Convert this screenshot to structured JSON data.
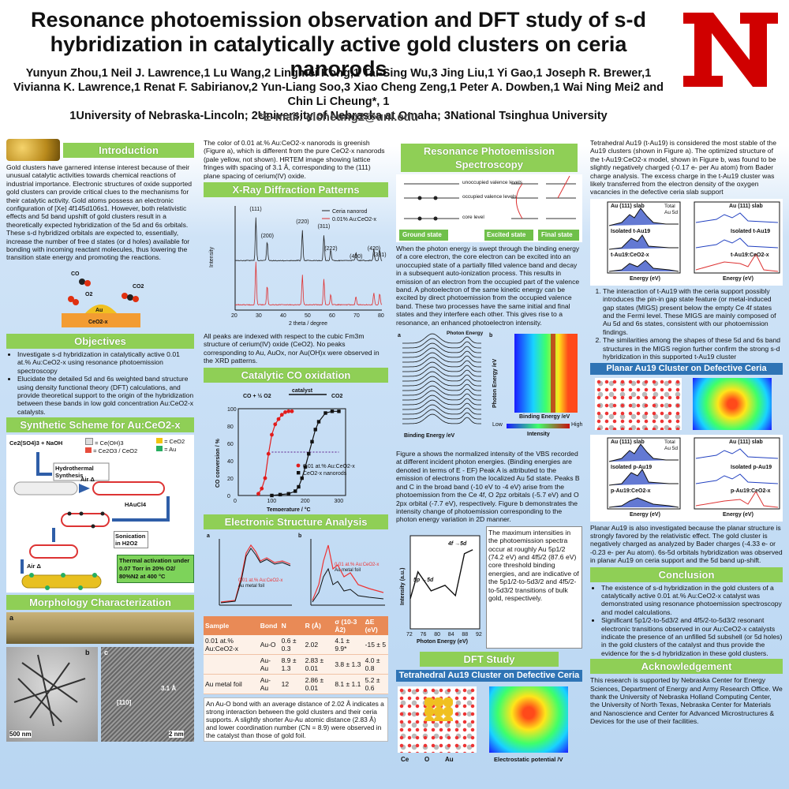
{
  "header": {
    "title": "Resonance photoemission observation and DFT study of s-d hybridization in catalytically active gold clusters on ceria nanorods",
    "authors_line1": "Yunyun Zhou,1 Neil J. Lawrence,1 Lu Wang,2 Lingmei Kong,1 Tai-Sing Wu,3 Jing Liu,1 Yi Gao,1 Joseph R. Brewer,1 Vivianna K. Lawrence,1 Renat F. Sabirianov,2 Yun-Liang Soo,3 Xiao Cheng Zeng,1 Peter A. Dowben,1 Wai Ning Mei2 and Chin Li Cheung*, 1",
    "affiliations": "1University of Nebraska-Lincoln; 2University of Nebraska at Omaha; 3National Tsinghua University",
    "email": "*E-mail: clcheung2@unl.edu",
    "logo_letter": "N"
  },
  "intro": {
    "heading": "Introduction",
    "text": "Gold clusters have garnered intense interest because of their unusual catalytic activities towards chemical reactions of industrial importance. Electronic structures of oxide supported gold clusters can provide critical clues to the mechanisms for their catalytic activity. Gold atoms possess an electronic configuration of [Xe] 4f145d106s1. However, both relativistic effects and 5d band upshift of gold clusters result in a theoretically expected hybridization of the 5d and 6s orbitals. These s-d hybridized orbitals are expected to, essentially, increase the number of free d states (or d holes) available for bonding with incoming reactant molecules, thus lowering the transition state energy and promoting the reactions.",
    "fig_labels": {
      "co": "CO",
      "o2": "O2",
      "co2": "CO2",
      "au": "Au",
      "support": "CeO2-x"
    }
  },
  "objectives": {
    "heading": "Objectives",
    "items": [
      "Investigate s-d hybridization in catalytically active 0.01 at.% Au:CeO2-x using resonance photoemission spectroscopy",
      "Elucidate the detailed 5d and 6s weighted band structure using density functional theory (DFT) calculations, and provide theoretical support to the origin of the hybridization between these bands in low gold concentration Au:CeO2-x catalysts."
    ]
  },
  "synthesis": {
    "heading": "Synthetic Scheme for Au:CeO2-x",
    "reagents": "Ce2(SO4)3 + NaOH",
    "legend": [
      "= Ce(OH)3",
      "= Ce2O3 / CeO2",
      "= CeO2",
      "= Au"
    ],
    "step1": "Hydrothermal Synthesis",
    "step2": "Air Δ",
    "step3": "HAuCl4",
    "step4": "Sonication in H2O2",
    "step5": "Air Δ",
    "final": "Thermal activation under 0.07 Torr in 20% O2/ 80%N2 at 400 °C"
  },
  "morphology": {
    "heading": "Morphology Characterization",
    "labels": [
      "a",
      "b",
      "c"
    ],
    "scale1": "500 nm",
    "scale2": "2 nm",
    "lattice": "[110]",
    "spacing": "3.1 Å"
  },
  "col2": {
    "intro_text": "The color of 0.01 at.% Au:CeO2-x nanorods is greenish (Figure a), which is different from the pure CeO2-x nanorods (pale yellow, not shown). HRTEM image showing lattice fringes with spacing of 3.1 Å, corresponding to the (111) plane spacing of cerium(IV) oxide.",
    "xrd_heading": "X-Ray Diffraction Patterns",
    "xrd_text": "All peaks are indexed with respect to the cubic Fm3m structure of cerium(IV) oxide (CeO2). No peaks corresponding to Au, AuOx, nor Au(OH)x were observed in the XRD patterns.",
    "co_heading": "Catalytic CO oxidation",
    "co_eq_left": "CO + ½ O2",
    "co_eq_cat": "catalyst",
    "co_eq_right": "CO2",
    "esa_heading": "Electronic Structure Analysis",
    "exafs_legend_a": [
      "0.01 at.% Au:CeO2-x",
      "Au metal foil"
    ],
    "exafs_legend_b": [
      "0.01 at.% Au:CeO2-x",
      "Au metal foil"
    ],
    "table_headers": [
      "Sample",
      "Bond",
      "N",
      "R (Å)",
      "σ (10-3 Å2)",
      "ΔE (eV)"
    ],
    "table_rows": [
      [
        "0.01 at.% Au:CeO2-x",
        "Au-O",
        "0.6 ± 0.3",
        "2.02",
        "4.1 ± 9.9*",
        "-15 ± 5"
      ],
      [
        "",
        "Au-Au",
        "8.9 ± 1.3",
        "2.83 ± 0.01",
        "3.8 ± 1.3",
        "4.0 ± 0.8"
      ],
      [
        "Au metal foil",
        "Au-Au",
        "12",
        "2.86 ± 0.01",
        "8.1 ± 1.1",
        "5.2 ± 0.6"
      ]
    ],
    "table_note": "An Au-O bond with an average distance of 2.02 Å indicates a strong interaction between the gold clusters and their ceria supports. A slightly shorter Au-Au atomic distance (2.83 Å) and lower coordination number (CN = 8.9) were observed in the catalyst than those of gold foil."
  },
  "col3": {
    "rps_heading": "Resonance Photoemission Spectroscopy",
    "diagram_labels": [
      "unoccupied valence levels",
      "occupied valence levels",
      "core level"
    ],
    "states": [
      "Ground state",
      "Excited state",
      "Final state"
    ],
    "rps_text": "When the photon energy is swept through the binding energy of a core electron, the core electron can be excited into an unoccupied state of a partially filled valence band and decay in a subsequent auto-ionization process. This results in emission of an electron from the occupied part of the valence band. A photoelectron of the same kinetic energy can be excited by direct photoemission from the occupied valence band. These two processes have the same initial and final states and they interfere each other. This gives rise to a resonance, an enhanced photoelectron intensity.",
    "map_labels": {
      "low": "Low",
      "high": "High",
      "intensity": "Intensity",
      "ylabel": "Photon Energy /eV",
      "xlabel": "Binding Energy /eV",
      "photon": "Photon Energy"
    },
    "fig_text": "Figure a shows the normalized intensity of the VBS recorded at different incident photon energies. (Binding energies are denoted in terms of E - EF) Peak A is attributed to the emission of electrons from the localized Au 5d state. Peaks B and C in the broad band (-10 eV to -4 eV) arise from the photoemission from the Ce 4f, O 2pz orbitals (-5.7 eV) and O 2px orbital (-7.7 eV), respectively. Figure b demonstrates the intensity change of photoemission corresponding to the photon energy variation in 2D manner.",
    "resonance_labels": {
      "p": "5p →5d",
      "f": "4f →5d",
      "x": "Photon Energy (eV)",
      "y": "Intensity (a.u.)"
    },
    "resonance_text": "The maximum intensities in the photoemission spectra occur at roughly Au 5p1/2 (74.2 eV) and 4f5/2 (87.6 eV) core threshold binding energies, and are indicative of the 5p1/2-to-5d3/2 and 4f5/2-to-5d3/2 transitions of bulk gold, respectively.",
    "dft_heading": "DFT Study",
    "dft_sub": "Tetrahedral Au19 Cluster on Defective Ceria",
    "dft_legend": [
      "Ce",
      "O",
      "Au"
    ],
    "potential": "Electrostatic potential /V"
  },
  "col4": {
    "intro_text": "Tetrahedral Au19 (t-Au19) is considered the most stable of the Au19 clusters (shown in Figure a). The optimized structure of the t-Au19:CeO2-x model, shown in Figure b, was found to be slightly negatively charged (-0.17 e- per Au atom) from Bader charge analysis. The excess charge in the t-Au19 cluster was likely transferred from the electron density of the oxygen vacancies in the defective ceria slab support",
    "points": [
      "The interaction of t-Au19 with the ceria support possibly introduces the pin-in gap state feature (or metal-induced gap states (MIGS) present below the empty Ce 4f states and the Fermi level. These MIGS are mainly composed of Au 5d and 6s states, consistent with our photoemission findings.",
      "The similarities among the shapes of these 5d and 6s band structures in the MIGS region further confirm the strong s-d hybridization in this supported t-Au19 cluster"
    ],
    "planar_heading": "Planar Au19 Cluster on Defective Ceria",
    "planar_text": "Planar Au19 is also investigated because the planar structure is strongly favored by the relativistic effect. The gold cluster is negatively charged as analyzed by Bader charges (-4.33 e- or -0.23 e- per Au atom). 6s-5d orbitals hybridization was observed in planar Au19 on ceria support and the 5d band up-shift.",
    "conclusion_heading": "Conclusion",
    "conclusions": [
      "The existence of s-d hybridization in the gold clusters of a catalytically active 0.01 at.% Au:CeO2-x catalyst was demonstrated using resonance photoemission spectroscopy and model calculations.",
      "Significant 5p1/2-to-5d3/2 and 4f5/2-to-5d3/2 resonant electronic transitions observed in our Au:CeO2-x catalysts indicate the presence of an unfilled 5d subshell (or 5d holes) in the gold clusters of the catalyst and thus provide the evidence for the s-d hybridization in these gold clusters."
    ],
    "ack_heading": "Acknowledgement",
    "ack_text": "This research is supported by Nebraska Center for Energy Sciences, Department of Energy and Army Research Office. We thank the University of Nebraska Holland Computing Center, the University of North Texas, Nebraska Center for Materials and Nanoscience and Center for Advanced Microstructures & Devices for the use of their facilities.",
    "dos_labels": {
      "slab": "Au (111) slab",
      "total": "Total",
      "au5d": "Au 5d",
      "iso_t": "Isolated t-Au19",
      "sup_t": "t-Au19:CeO2-x",
      "iso_p": "Isolated p-Au19",
      "sup_p": "p-Au19:CeO2-x",
      "x": "Energy (eV)",
      "y": "DOS (electrons/eV)",
      "y2": "PDOS (electrons/eV)",
      "legend": [
        "Au-6s",
        "Au-6p",
        "Au-5d",
        "Ce-4f",
        "O-2p"
      ]
    }
  },
  "chart_data": [
    {
      "type": "line",
      "title": "",
      "xlabel": "2 theta / degree",
      "ylabel": "Intensity",
      "series": [
        {
          "name": "Ceria nanorod"
        },
        {
          "name": "0.01% Au:CeO2-x"
        }
      ],
      "peak_labels": [
        "(111)",
        "(200)",
        "(220)",
        "(311)",
        "(222)",
        "(400)",
        "(420)",
        "(331)"
      ],
      "peak_positions": [
        28.5,
        33.1,
        47.5,
        56.3,
        59.1,
        69.4,
        76.7,
        79.1
      ],
      "xlim": [
        20,
        80
      ],
      "xticks": [
        20,
        30,
        40,
        50,
        60,
        70,
        80
      ]
    },
    {
      "type": "line",
      "title": "",
      "xlabel": "Temperature / °C",
      "ylabel": "CO conversion / %",
      "xlim": [
        0,
        320
      ],
      "ylim": [
        0,
        100
      ],
      "xticks": [
        0,
        100,
        200,
        300
      ],
      "yticks": [
        0,
        20,
        40,
        60,
        80,
        100
      ],
      "series": [
        {
          "name": "0.01 at.% Au:CeO2-x",
          "color": "#e21b1b",
          "x": [
            60,
            70,
            80,
            90,
            100,
            110,
            120,
            130,
            140,
            150,
            160
          ],
          "y": [
            2,
            8,
            20,
            48,
            70,
            82,
            88,
            93,
            96,
            97,
            97
          ]
        },
        {
          "name": "CeO2-x nanorods",
          "color": "#111111",
          "x": [
            100,
            125,
            150,
            170,
            180,
            190,
            200,
            210,
            220,
            230,
            240,
            260,
            280,
            300
          ],
          "y": [
            0,
            1,
            2,
            5,
            10,
            20,
            33,
            48,
            62,
            76,
            85,
            95,
            97,
            97
          ]
        }
      ]
    },
    {
      "type": "line",
      "title": "",
      "xlabel": "Photon Energy (eV)",
      "ylabel": "Intensity (a.u.)",
      "xlim": [
        72,
        92
      ],
      "xticks": [
        72,
        76,
        80,
        84,
        88,
        92
      ],
      "series": [
        {
          "name": "",
          "x": [
            72,
            74.2,
            78,
            82,
            85,
            87.6,
            90
          ],
          "y": [
            0.38,
            0.72,
            0.48,
            0.55,
            0.42,
            0.95,
            1.0
          ]
        }
      ]
    }
  ]
}
